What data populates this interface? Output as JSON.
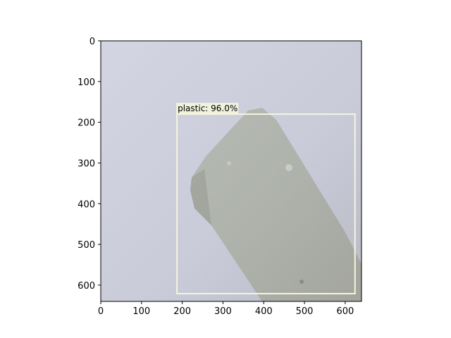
{
  "chart_data": {
    "type": "detection",
    "xlim": [
      0,
      640
    ],
    "ylim": [
      640,
      0
    ],
    "xticks": [
      0,
      100,
      200,
      300,
      400,
      500,
      600
    ],
    "yticks": [
      0,
      100,
      200,
      300,
      400,
      500,
      600
    ],
    "boxes": [
      {
        "label": "plastic: 96.0%",
        "color": "#f5f5dc",
        "x": [
          187,
          624
        ],
        "y": [
          180,
          621
        ]
      }
    ]
  }
}
